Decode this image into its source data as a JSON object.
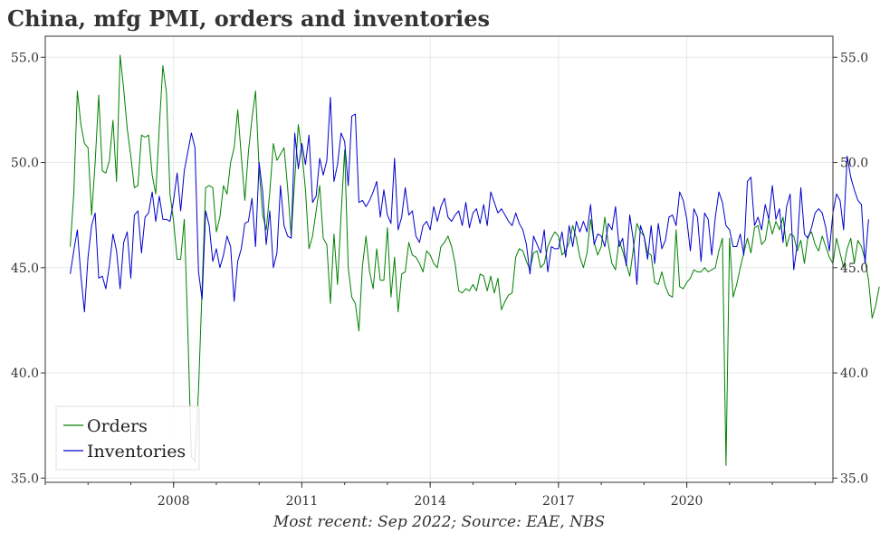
{
  "chart_data": {
    "type": "line",
    "title": "China, mfg PMI, orders and inventories",
    "caption": "Most recent: Sep 2022; Source: EAE, NBS",
    "x_range": [
      "2005-01",
      "2023-06"
    ],
    "ylim": [
      34.8,
      56.0
    ],
    "y_ticks": [
      {
        "value": 35.0,
        "label": "35.0"
      },
      {
        "value": 40.0,
        "label": "40.0"
      },
      {
        "value": 45.0,
        "label": "45.0"
      },
      {
        "value": 50.0,
        "label": "50.0"
      },
      {
        "value": 55.0,
        "label": "55.0"
      }
    ],
    "x_ticks": [
      {
        "value": "2008-01",
        "label": "2008"
      },
      {
        "value": "2011-01",
        "label": "2011"
      },
      {
        "value": "2014-01",
        "label": "2014"
      },
      {
        "value": "2017-01",
        "label": "2017"
      },
      {
        "value": "2020-01",
        "label": "2020"
      }
    ],
    "grid": true,
    "legend_position": "bottom-left",
    "x_start": "2005-01",
    "series": [
      {
        "name": "Orders",
        "color": "#008000",
        "values": [
          46.0,
          48.5,
          53.4,
          51.8,
          50.9,
          50.7,
          47.5,
          50.0,
          53.2,
          49.6,
          49.5,
          50.1,
          52.0,
          49.1,
          55.1,
          53.5,
          51.6,
          50.3,
          48.8,
          48.9,
          51.3,
          51.2,
          51.3,
          49.4,
          48.5,
          51.7,
          54.6,
          53.3,
          48.5,
          47.2,
          45.4,
          45.4,
          47.3,
          42.0,
          36.0,
          35.8,
          39.2,
          44.0,
          48.8,
          48.9,
          48.8,
          46.7,
          47.4,
          48.9,
          48.5,
          50.0,
          50.7,
          52.5,
          50.3,
          48.2,
          50.5,
          52.1,
          53.4,
          49.7,
          47.5,
          46.8,
          48.6,
          50.9,
          50.1,
          50.4,
          50.7,
          48.8,
          46.5,
          49.2,
          51.8,
          50.5,
          48.7,
          45.9,
          46.5,
          47.7,
          48.9,
          46.4,
          46.1,
          43.3,
          46.6,
          44.2,
          47.5,
          50.6,
          45.0,
          43.6,
          43.3,
          42.0,
          45.1,
          46.5,
          44.8,
          44.0,
          45.9,
          44.4,
          44.4,
          46.9,
          43.6,
          45.5,
          42.9,
          44.7,
          44.8,
          46.2,
          45.6,
          45.5,
          45.2,
          44.8,
          45.8,
          45.6,
          45.2,
          45.0,
          46.0,
          46.2,
          46.5,
          46.0,
          45.2,
          43.9,
          43.8,
          44.0,
          43.9,
          44.2,
          43.9,
          44.7,
          44.6,
          43.9,
          44.6,
          43.8,
          44.5,
          43.0,
          43.4,
          43.7,
          43.8,
          45.5,
          45.9,
          45.8,
          45.3,
          44.9,
          45.7,
          45.8,
          45.0,
          45.2,
          46.0,
          46.4,
          46.7,
          46.5,
          45.6,
          45.8,
          46.2,
          47.0,
          46.4,
          45.5,
          45.0,
          45.7,
          47.3,
          46.2,
          45.6,
          46.0,
          47.4,
          46.1,
          45.2,
          44.9,
          46.3,
          45.8,
          45.2,
          44.6,
          45.9,
          47.1,
          46.7,
          46.5,
          45.7,
          45.6,
          44.3,
          44.2,
          44.8,
          44.1,
          43.7,
          43.6,
          46.8,
          44.1,
          44.0,
          44.3,
          44.5,
          44.9,
          44.8,
          44.8,
          45.0,
          44.8,
          44.9,
          45.0,
          45.8,
          46.4,
          35.6,
          46.4,
          43.6,
          44.2,
          45.0,
          45.7,
          46.4,
          45.7,
          46.9,
          47.0,
          46.1,
          46.3,
          47.3,
          46.6,
          47.2,
          46.8,
          47.4,
          46.0,
          46.6,
          46.5,
          45.8,
          46.3,
          45.2,
          46.5,
          46.7,
          46.1,
          45.8,
          46.5,
          46.0,
          45.5,
          45.2,
          46.4,
          45.7,
          45.0,
          45.9,
          46.4,
          45.2,
          46.3,
          46.0,
          45.4,
          44.4,
          42.6,
          43.2,
          44.1
        ],
        "start_month": "2005-08"
      },
      {
        "name": "Inventories",
        "color": "#0000cc",
        "values": [
          44.7,
          45.8,
          46.8,
          44.6,
          42.9,
          45.5,
          47.0,
          47.6,
          44.5,
          44.6,
          44.0,
          45.1,
          46.6,
          45.8,
          44.0,
          46.2,
          46.7,
          44.5,
          47.5,
          47.7,
          45.7,
          47.4,
          47.6,
          48.6,
          47.2,
          48.4,
          47.3,
          47.3,
          47.2,
          48.2,
          49.5,
          47.7,
          49.6,
          50.5,
          51.4,
          50.7,
          44.8,
          43.5,
          47.7,
          47.0,
          45.3,
          45.9,
          45.0,
          45.6,
          46.5,
          46.0,
          43.4,
          45.3,
          45.9,
          47.1,
          47.2,
          48.3,
          46.0,
          50.0,
          48.6,
          46.1,
          47.7,
          45.0,
          45.7,
          48.9,
          47.0,
          46.5,
          46.4,
          51.4,
          49.7,
          50.9,
          49.9,
          51.3,
          48.1,
          48.4,
          50.2,
          49.4,
          50.1,
          53.1,
          49.1,
          49.9,
          51.4,
          51.0,
          48.9,
          52.2,
          52.3,
          48.1,
          48.2,
          47.9,
          48.2,
          48.6,
          49.1,
          47.4,
          48.7,
          47.5,
          47.1,
          50.2,
          46.8,
          47.4,
          48.8,
          47.5,
          47.7,
          46.5,
          46.2,
          47.0,
          47.2,
          46.8,
          47.9,
          47.2,
          47.9,
          48.3,
          47.4,
          47.2,
          47.5,
          47.7,
          47.0,
          48.1,
          46.9,
          47.6,
          47.8,
          47.1,
          48.0,
          47.0,
          48.6,
          48.1,
          47.6,
          47.8,
          47.5,
          47.2,
          47.0,
          47.6,
          47.1,
          46.8,
          46.1,
          44.7,
          46.5,
          46.1,
          45.7,
          46.8,
          44.8,
          46.0,
          45.9,
          45.9,
          46.7,
          45.5,
          47.0,
          46.0,
          47.2,
          46.7,
          47.2,
          46.7,
          48.0,
          46.1,
          46.6,
          46.5,
          46.0,
          47.1,
          46.8,
          47.9,
          46.0,
          46.4,
          45.1,
          47.5,
          46.3,
          44.2,
          47.0,
          46.5,
          45.4,
          47.0,
          45.2,
          47.1,
          45.9,
          46.3,
          47.4,
          47.5,
          47.0,
          48.6,
          48.2,
          47.3,
          45.8,
          47.8,
          47.4,
          45.3,
          47.6,
          47.3,
          45.6,
          47.4,
          48.6,
          48.1,
          47.0,
          46.8,
          46.0,
          46.0,
          46.6,
          45.6,
          49.1,
          49.3,
          47.0,
          47.4,
          46.8,
          48.0,
          47.3,
          48.9,
          47.3,
          47.8,
          46.2,
          47.9,
          48.5,
          44.9,
          46.1,
          48.8,
          46.6,
          46.4,
          46.9,
          47.6,
          47.8,
          47.6,
          46.9,
          45.8,
          47.6,
          48.5,
          48.2,
          46.8,
          50.3,
          49.3,
          48.7,
          48.2,
          48.0,
          45.2,
          47.3
        ],
        "start_month": "2005-08"
      }
    ]
  }
}
